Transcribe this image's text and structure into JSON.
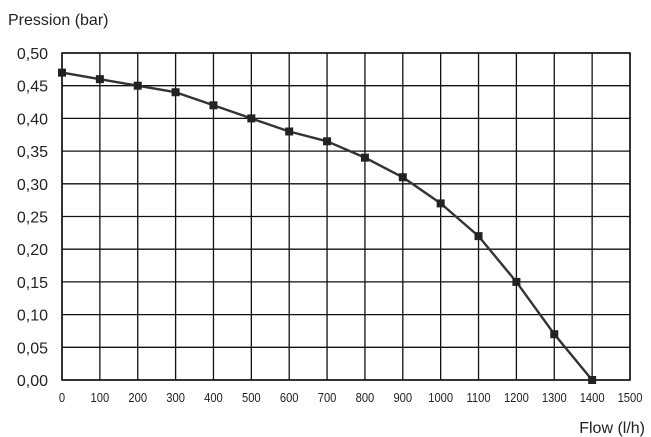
{
  "chart_data": {
    "type": "line",
    "title": "",
    "ylabel": "Pression (bar)",
    "xlabel": "Flow (l/h)",
    "xlim": [
      0,
      1500
    ],
    "ylim": [
      0,
      0.5
    ],
    "grid": true,
    "x_ticks": [
      "0",
      "100",
      "200",
      "300",
      "400",
      "500",
      "600",
      "700",
      "800",
      "900",
      "1000",
      "1100",
      "1200",
      "1300",
      "1400",
      "1500"
    ],
    "y_ticks": [
      "0,00",
      "0,05",
      "0,10",
      "0,15",
      "0,20",
      "0,25",
      "0,30",
      "0,35",
      "0,40",
      "0,45",
      "0,50"
    ],
    "series": [
      {
        "x": [
          0,
          100,
          200,
          300,
          400,
          500,
          600,
          700,
          800,
          900,
          1000,
          1100,
          1200,
          1300,
          1400
        ],
        "y": [
          0.47,
          0.46,
          0.45,
          0.44,
          0.42,
          0.4,
          0.38,
          0.365,
          0.34,
          0.31,
          0.27,
          0.22,
          0.15,
          0.07,
          0.0
        ]
      }
    ],
    "colors": {
      "line": "#333333",
      "marker": "#222222",
      "grid": "#111111"
    }
  }
}
